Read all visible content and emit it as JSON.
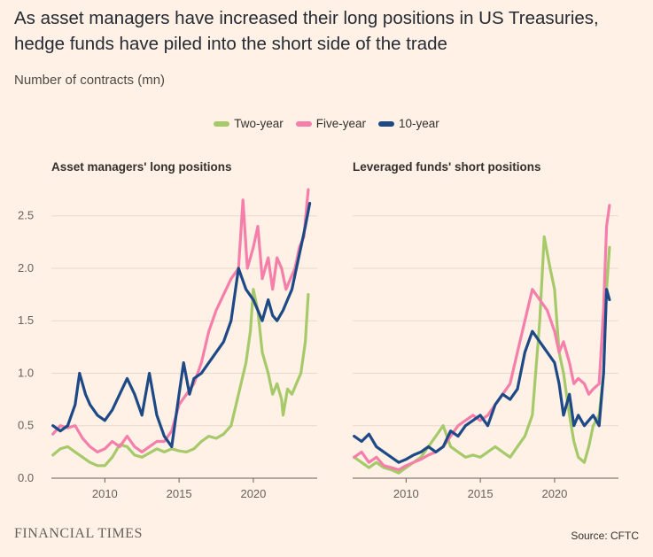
{
  "header": {
    "title": "As asset managers have increased their long positions in US Treasuries, hedge funds have piled into the short side of the trade",
    "subtitle": "Number of contracts (mn)"
  },
  "legend": [
    {
      "label": "Two-year",
      "color": "#A6C96A"
    },
    {
      "label": "Five-year",
      "color": "#F57FAA"
    },
    {
      "label": "10-year",
      "color": "#1D4A87"
    }
  ],
  "footer": {
    "brand": "FINANCIAL TIMES",
    "source": "Source: CFTC"
  },
  "chart_data": [
    {
      "type": "line",
      "title": "Asset managers' long positions",
      "xlabel": "",
      "ylabel": "",
      "xlim": [
        2006.4,
        2024.3
      ],
      "ylim": [
        0,
        2.7
      ],
      "xticks": [
        2010,
        2015,
        2020
      ],
      "yticks": [
        0.0,
        0.5,
        1.0,
        1.5,
        2.0,
        2.5
      ],
      "ytick_labels": [
        "0.0",
        "0.5",
        "1.0",
        "1.5",
        "2.0",
        "2.5"
      ],
      "grid": "horizontal",
      "series": [
        {
          "name": "Two-year",
          "color": "#A6C96A",
          "x": [
            2006.5,
            2007,
            2007.5,
            2008,
            2008.5,
            2009,
            2009.5,
            2010,
            2010.5,
            2011,
            2011.5,
            2012,
            2012.5,
            2013,
            2013.5,
            2014,
            2014.5,
            2015,
            2015.5,
            2016,
            2016.5,
            2017,
            2017.5,
            2018,
            2018.5,
            2019,
            2019.5,
            2019.8,
            2020,
            2020.3,
            2020.6,
            2021,
            2021.3,
            2021.6,
            2021.9,
            2022,
            2022.3,
            2022.6,
            2022.9,
            2023.2,
            2023.5,
            2023.7
          ],
          "values": [
            0.22,
            0.28,
            0.3,
            0.25,
            0.2,
            0.15,
            0.12,
            0.12,
            0.2,
            0.32,
            0.3,
            0.22,
            0.2,
            0.24,
            0.28,
            0.25,
            0.28,
            0.26,
            0.25,
            0.28,
            0.35,
            0.4,
            0.38,
            0.42,
            0.5,
            0.8,
            1.1,
            1.4,
            1.8,
            1.6,
            1.2,
            1.0,
            0.8,
            0.9,
            0.75,
            0.6,
            0.85,
            0.8,
            0.9,
            1.0,
            1.3,
            1.75
          ]
        },
        {
          "name": "Five-year",
          "color": "#F57FAA",
          "x": [
            2006.5,
            2007,
            2007.5,
            2008,
            2008.5,
            2009,
            2009.5,
            2010,
            2010.5,
            2011,
            2011.5,
            2012,
            2012.5,
            2013,
            2013.5,
            2014,
            2014.5,
            2015,
            2015.5,
            2016,
            2016.5,
            2017,
            2017.5,
            2018,
            2018.5,
            2019,
            2019.3,
            2019.6,
            2020,
            2020.3,
            2020.6,
            2021,
            2021.3,
            2021.6,
            2021.9,
            2022.2,
            2022.5,
            2022.8,
            2023.1,
            2023.4,
            2023.7
          ],
          "values": [
            0.42,
            0.5,
            0.48,
            0.5,
            0.38,
            0.3,
            0.25,
            0.28,
            0.35,
            0.3,
            0.4,
            0.3,
            0.25,
            0.3,
            0.35,
            0.35,
            0.45,
            0.7,
            0.8,
            0.9,
            1.1,
            1.4,
            1.6,
            1.75,
            1.9,
            2.0,
            2.65,
            2.0,
            2.2,
            2.4,
            1.9,
            2.1,
            1.8,
            2.1,
            2.0,
            1.8,
            1.9,
            2.0,
            2.2,
            2.3,
            2.75
          ]
        },
        {
          "name": "10-year",
          "color": "#1D4A87",
          "x": [
            2006.5,
            2007,
            2007.5,
            2008,
            2008.3,
            2008.7,
            2009,
            2009.5,
            2010,
            2010.5,
            2011,
            2011.5,
            2012,
            2012.5,
            2013,
            2013.5,
            2014,
            2014.5,
            2015,
            2015.3,
            2015.7,
            2016,
            2016.5,
            2017,
            2017.5,
            2018,
            2018.5,
            2019,
            2019.5,
            2020,
            2020.3,
            2020.6,
            2021,
            2021.3,
            2021.6,
            2022,
            2022.3,
            2022.6,
            2022.9,
            2023.2,
            2023.5,
            2023.8
          ],
          "values": [
            0.5,
            0.45,
            0.5,
            0.7,
            1.0,
            0.8,
            0.7,
            0.6,
            0.55,
            0.65,
            0.8,
            0.95,
            0.8,
            0.6,
            1.0,
            0.6,
            0.4,
            0.3,
            0.8,
            1.1,
            0.8,
            0.95,
            1.0,
            1.1,
            1.2,
            1.3,
            1.5,
            2.0,
            1.8,
            1.7,
            1.6,
            1.5,
            1.7,
            1.55,
            1.5,
            1.6,
            1.7,
            1.8,
            2.0,
            2.2,
            2.4,
            2.62
          ]
        }
      ]
    },
    {
      "type": "line",
      "title": "Leveraged funds' short positions",
      "xlabel": "",
      "ylabel": "",
      "xlim": [
        2006.4,
        2024.3
      ],
      "ylim": [
        0,
        2.7
      ],
      "xticks": [
        2010,
        2015,
        2020
      ],
      "grid": "horizontal",
      "series": [
        {
          "name": "Two-year",
          "color": "#A6C96A",
          "x": [
            2006.5,
            2007,
            2007.5,
            2008,
            2008.5,
            2009,
            2009.5,
            2010,
            2010.5,
            2011,
            2011.5,
            2012,
            2012.5,
            2013,
            2013.5,
            2014,
            2014.5,
            2015,
            2015.5,
            2016,
            2016.5,
            2017,
            2017.5,
            2018,
            2018.5,
            2019,
            2019.3,
            2019.7,
            2020,
            2020.3,
            2020.6,
            2021,
            2021.3,
            2021.6,
            2022,
            2022.3,
            2022.6,
            2023,
            2023.3,
            2023.5,
            2023.7
          ],
          "values": [
            0.2,
            0.15,
            0.1,
            0.15,
            0.1,
            0.08,
            0.05,
            0.1,
            0.15,
            0.2,
            0.3,
            0.4,
            0.5,
            0.3,
            0.25,
            0.2,
            0.22,
            0.2,
            0.25,
            0.3,
            0.25,
            0.2,
            0.3,
            0.4,
            0.6,
            1.5,
            2.3,
            2.0,
            1.8,
            1.2,
            1.0,
            0.6,
            0.35,
            0.2,
            0.15,
            0.3,
            0.5,
            0.6,
            1.0,
            1.8,
            2.2
          ]
        },
        {
          "name": "Five-year",
          "color": "#F57FAA",
          "x": [
            2006.5,
            2007,
            2007.5,
            2008,
            2008.5,
            2009,
            2009.5,
            2010,
            2010.5,
            2011,
            2011.5,
            2012,
            2012.5,
            2013,
            2013.5,
            2014,
            2014.5,
            2015,
            2015.5,
            2016,
            2016.5,
            2017,
            2017.5,
            2018,
            2018.5,
            2019,
            2019.5,
            2020,
            2020.3,
            2020.6,
            2021,
            2021.3,
            2021.6,
            2022,
            2022.3,
            2022.6,
            2023,
            2023.3,
            2023.5,
            2023.7
          ],
          "values": [
            0.2,
            0.25,
            0.15,
            0.2,
            0.12,
            0.1,
            0.08,
            0.12,
            0.15,
            0.18,
            0.22,
            0.25,
            0.3,
            0.4,
            0.5,
            0.55,
            0.6,
            0.55,
            0.6,
            0.7,
            0.8,
            0.9,
            1.2,
            1.5,
            1.8,
            1.7,
            1.6,
            1.4,
            1.2,
            1.3,
            1.1,
            0.9,
            0.95,
            0.9,
            0.8,
            0.85,
            0.9,
            1.6,
            2.4,
            2.6
          ]
        },
        {
          "name": "10-year",
          "color": "#1D4A87",
          "x": [
            2006.5,
            2007,
            2007.5,
            2008,
            2008.5,
            2009,
            2009.5,
            2010,
            2010.5,
            2011,
            2011.5,
            2012,
            2012.5,
            2013,
            2013.5,
            2014,
            2014.5,
            2015,
            2015.5,
            2016,
            2016.5,
            2017,
            2017.5,
            2018,
            2018.5,
            2019,
            2019.5,
            2020,
            2020.3,
            2020.6,
            2021,
            2021.3,
            2021.6,
            2022,
            2022.3,
            2022.6,
            2023,
            2023.3,
            2023.5,
            2023.7
          ],
          "values": [
            0.4,
            0.35,
            0.42,
            0.3,
            0.25,
            0.2,
            0.15,
            0.18,
            0.22,
            0.25,
            0.3,
            0.25,
            0.3,
            0.45,
            0.4,
            0.5,
            0.55,
            0.6,
            0.5,
            0.7,
            0.8,
            0.75,
            0.85,
            1.2,
            1.4,
            1.3,
            1.2,
            1.1,
            0.9,
            0.6,
            0.8,
            0.5,
            0.6,
            0.5,
            0.55,
            0.6,
            0.5,
            1.0,
            1.8,
            1.7
          ]
        }
      ]
    }
  ]
}
